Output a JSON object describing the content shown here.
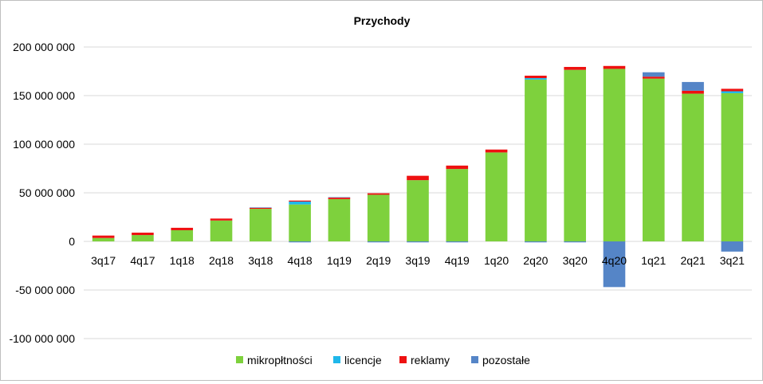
{
  "chart_data": {
    "type": "bar",
    "stacked": true,
    "title": "Przychody",
    "xlabel": "",
    "ylabel": "",
    "ylim": [
      -100000000,
      200000000
    ],
    "y_ticks": [
      200000000,
      150000000,
      100000000,
      50000000,
      0,
      -50000000,
      -100000000
    ],
    "y_tick_labels": [
      "200 000 000",
      "150 000 000",
      "100 000 000",
      "50 000 000",
      "0",
      "-50 000 000",
      "-100 000 000"
    ],
    "grid": true,
    "legend_position": "bottom",
    "categories": [
      "3q17",
      "4q17",
      "1q18",
      "2q18",
      "3q18",
      "4q18",
      "1q19",
      "2q19",
      "3q19",
      "4q19",
      "1q20",
      "2q20",
      "3q20",
      "4q20",
      "1q21",
      "2q21",
      "3q21"
    ],
    "series": [
      {
        "name": "mikropłtności",
        "color": "#7ed13d",
        "values": [
          3500000,
          6500000,
          11500000,
          21500000,
          33500000,
          38000000,
          43500000,
          48000000,
          63000000,
          74500000,
          91500000,
          166500000,
          176500000,
          177500000,
          167500000,
          152000000,
          152500000
        ]
      },
      {
        "name": "licencje",
        "color": "#1fb7ea",
        "values": [
          0,
          0,
          0,
          0,
          0,
          3000000,
          0,
          0,
          0,
          0,
          0,
          1500000,
          0,
          0,
          0,
          0,
          2000000
        ]
      },
      {
        "name": "reklamy",
        "color": "#ee1111",
        "values": [
          2500000,
          2500000,
          2500000,
          2000000,
          1000000,
          1000000,
          1500000,
          1500000,
          4500000,
          3500000,
          3000000,
          2500000,
          3000000,
          3000000,
          2000000,
          3000000,
          2500000
        ]
      },
      {
        "name": "pozostałe",
        "color": "#5585c7",
        "values": [
          0,
          0,
          0,
          0,
          500000,
          -1000000,
          500000,
          -1000000,
          -1000000,
          -1000000,
          0,
          -1000000,
          -1000000,
          -47000000,
          4500000,
          9000000,
          -10500000
        ]
      }
    ]
  }
}
